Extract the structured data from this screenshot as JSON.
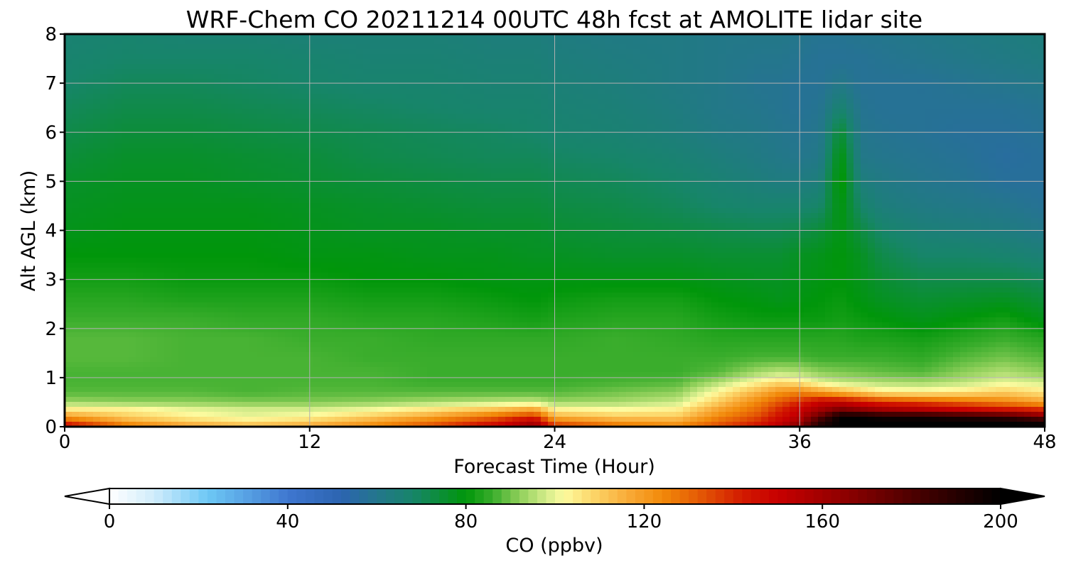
{
  "chart_data": {
    "type": "heatmap",
    "title": "WRF-Chem CO  20211214 00UTC 48h fcst at AMOLITE lidar site",
    "xlabel": "Forecast Time (Hour)",
    "ylabel": "Alt AGL (km)",
    "xlim": [
      0,
      48
    ],
    "ylim": [
      0,
      8
    ],
    "x_ticks": [
      0,
      12,
      24,
      36,
      48
    ],
    "y_ticks": [
      0,
      1,
      2,
      3,
      4,
      5,
      6,
      7,
      8
    ],
    "grid": true,
    "colorbar": {
      "label": "CO  (ppbv)",
      "range": [
        0,
        200
      ],
      "ticks": [
        0,
        40,
        80,
        120,
        160,
        200
      ],
      "extend": "both",
      "orientation": "horizontal"
    },
    "colorscale": [
      [
        0,
        "#ffffff"
      ],
      [
        10,
        "#d0ecfb"
      ],
      [
        22,
        "#6ec8f5"
      ],
      [
        40,
        "#3f77d0"
      ],
      [
        52,
        "#2c64b0"
      ],
      [
        60,
        "#24768c"
      ],
      [
        68,
        "#17856a"
      ],
      [
        74,
        "#0c8d3a"
      ],
      [
        80,
        "#00960a"
      ],
      [
        86,
        "#3aad2c"
      ],
      [
        92,
        "#8fcf5a"
      ],
      [
        98,
        "#d3ec8a"
      ],
      [
        102,
        "#fdfba0"
      ],
      [
        108,
        "#fcd86c"
      ],
      [
        116,
        "#f9ac3a"
      ],
      [
        124,
        "#f28a0a"
      ],
      [
        132,
        "#e55c05"
      ],
      [
        142,
        "#d21a00"
      ],
      [
        150,
        "#c80000"
      ],
      [
        166,
        "#8a0000"
      ],
      [
        184,
        "#3d0000"
      ],
      [
        200,
        "#000000"
      ]
    ],
    "x": [
      0,
      3,
      6,
      9,
      12,
      15,
      18,
      21,
      23,
      24,
      27,
      30,
      32,
      34,
      35,
      36,
      37,
      38,
      39,
      40,
      42,
      44,
      46,
      48
    ],
    "y": [
      0,
      0.1,
      0.2,
      0.35,
      0.5,
      0.7,
      0.9,
      1.1,
      1.4,
      1.8,
      2.2,
      2.6,
      3,
      3.5,
      4,
      4.5,
      5,
      5.5,
      6,
      6.5,
      7,
      7.5,
      8
    ],
    "z": [
      [
        150,
        130,
        120,
        115,
        118,
        125,
        135,
        150,
        165,
        140,
        130,
        125,
        135,
        145,
        155,
        170,
        190,
        200,
        200,
        200,
        200,
        200,
        200,
        200
      ],
      [
        135,
        118,
        110,
        106,
        110,
        118,
        128,
        140,
        155,
        128,
        120,
        118,
        130,
        140,
        150,
        160,
        190,
        200,
        200,
        200,
        200,
        200,
        200,
        195
      ],
      [
        120,
        110,
        104,
        100,
        103,
        110,
        118,
        130,
        140,
        115,
        110,
        110,
        124,
        135,
        145,
        155,
        175,
        200,
        200,
        195,
        195,
        190,
        185,
        170
      ],
      [
        105,
        104,
        100,
        98,
        98,
        101,
        106,
        112,
        118,
        104,
        102,
        104,
        118,
        130,
        140,
        150,
        160,
        170,
        165,
        160,
        155,
        150,
        145,
        140
      ],
      [
        93,
        92,
        92,
        91,
        91,
        92,
        94,
        96,
        97,
        93,
        94,
        97,
        110,
        125,
        133,
        140,
        150,
        150,
        145,
        140,
        135,
        130,
        125,
        118
      ],
      [
        88,
        88,
        88,
        87,
        88,
        88,
        88,
        88,
        88,
        88,
        90,
        92,
        103,
        115,
        122,
        125,
        120,
        115,
        110,
        105,
        104,
        106,
        110,
        106
      ],
      [
        87,
        87,
        87,
        87,
        87,
        87,
        86,
        86,
        86,
        86,
        87,
        88,
        95,
        104,
        108,
        106,
        100,
        97,
        96,
        95,
        94,
        96,
        100,
        98
      ],
      [
        87,
        87,
        87,
        87,
        87,
        87,
        86,
        86,
        86,
        86,
        86,
        86,
        88,
        94,
        96,
        95,
        92,
        91,
        90,
        89,
        88,
        92,
        95,
        92
      ],
      [
        88,
        88,
        87,
        87,
        87,
        86,
        86,
        86,
        86,
        86,
        86,
        86,
        86,
        87,
        87,
        87,
        86,
        86,
        86,
        86,
        85,
        88,
        90,
        88
      ],
      [
        88,
        88,
        87,
        87,
        86,
        86,
        85,
        85,
        85,
        85,
        86,
        85,
        84,
        84,
        84,
        84,
        84,
        84,
        83,
        83,
        82,
        84,
        86,
        84
      ],
      [
        86,
        86,
        86,
        85,
        85,
        84,
        84,
        83,
        82,
        83,
        84,
        84,
        82,
        81,
        81,
        81,
        81,
        82,
        81,
        80,
        78,
        80,
        82,
        78
      ],
      [
        84,
        84,
        83,
        83,
        83,
        82,
        82,
        81,
        80,
        81,
        82,
        82,
        80,
        79,
        78,
        79,
        80,
        81,
        79,
        77,
        75,
        76,
        77,
        74
      ],
      [
        82,
        82,
        81,
        81,
        81,
        80,
        80,
        79,
        79,
        79,
        79,
        79,
        78,
        77,
        77,
        78,
        79,
        80,
        78,
        75,
        72,
        72,
        72,
        70
      ],
      [
        80,
        80,
        80,
        80,
        79,
        79,
        78,
        78,
        77,
        77,
        76,
        76,
        75,
        75,
        75,
        77,
        78,
        80,
        77,
        72,
        68,
        68,
        67,
        65
      ],
      [
        78,
        79,
        79,
        79,
        78,
        77,
        77,
        76,
        76,
        75,
        74,
        73,
        72,
        71,
        71,
        72,
        74,
        79,
        73,
        68,
        65,
        64,
        63,
        61
      ],
      [
        77,
        78,
        78,
        78,
        77,
        76,
        75,
        74,
        74,
        73,
        72,
        70,
        68,
        67,
        67,
        67,
        68,
        80,
        68,
        64,
        62,
        61,
        60,
        58
      ],
      [
        76,
        77,
        77,
        76,
        75,
        74,
        73,
        72,
        72,
        71,
        70,
        68,
        66,
        64,
        63,
        63,
        64,
        82,
        64,
        62,
        60,
        59,
        57,
        57
      ],
      [
        74,
        76,
        76,
        75,
        74,
        72,
        71,
        70,
        70,
        69,
        68,
        66,
        64,
        62,
        61,
        60,
        61,
        80,
        61,
        60,
        59,
        58,
        56,
        57
      ],
      [
        72,
        74,
        74,
        73,
        72,
        71,
        70,
        69,
        68,
        67,
        66,
        64,
        62,
        61,
        60,
        59,
        60,
        75,
        60,
        59,
        58,
        57,
        57,
        58
      ],
      [
        70,
        72,
        72,
        71,
        70,
        69,
        68,
        67,
        67,
        66,
        65,
        63,
        61,
        60,
        59,
        58,
        59,
        67,
        59,
        58,
        58,
        58,
        58,
        59
      ],
      [
        68,
        70,
        70,
        69,
        68,
        67,
        67,
        66,
        66,
        65,
        64,
        62,
        61,
        59,
        59,
        58,
        58,
        61,
        58,
        58,
        58,
        59,
        60,
        61
      ],
      [
        67,
        68,
        68,
        68,
        67,
        66,
        66,
        65,
        65,
        64,
        63,
        62,
        61,
        60,
        60,
        59,
        58,
        58,
        58,
        59,
        60,
        61,
        62,
        63
      ],
      [
        66,
        67,
        66,
        66,
        65,
        65,
        65,
        64,
        64,
        63,
        62,
        62,
        61,
        61,
        61,
        60,
        59,
        59,
        60,
        60,
        61,
        62,
        63,
        64
      ]
    ]
  }
}
